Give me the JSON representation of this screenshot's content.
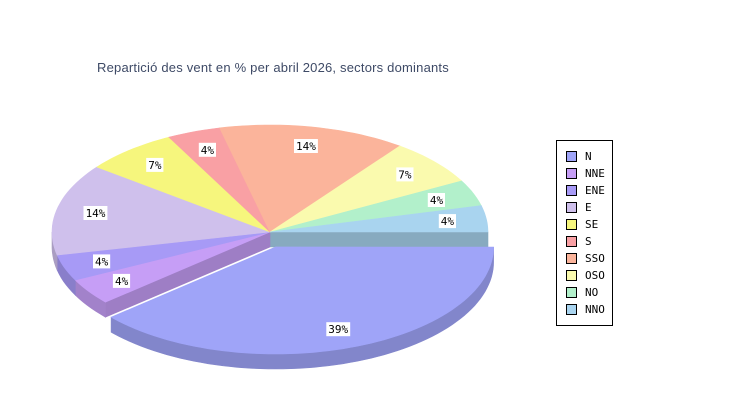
{
  "title": "Repartició des vent en % per abril 2026, sectors dominants",
  "title_color": "#3e4a66",
  "chart_data": {
    "type": "pie",
    "style": "3d-exploded",
    "title": "Repartició des vent en % per abril 2026, sectors dominants",
    "labels": [
      "N",
      "NNE",
      "ENE",
      "E",
      "SE",
      "S",
      "SSO",
      "OSO",
      "NO",
      "NNO"
    ],
    "values": [
      39,
      4,
      4,
      14,
      7,
      4,
      14,
      7,
      4,
      4
    ],
    "value_labels": [
      "39%",
      "4%",
      "4%",
      "14%",
      "7%",
      "4%",
      "14%",
      "7%",
      "4%",
      "4%"
    ],
    "colors": [
      "#9fa4f8",
      "#c69ef6",
      "#a79af6",
      "#cfc0ec",
      "#f6f67d",
      "#f9a0a4",
      "#fbb49b",
      "#fafaae",
      "#b2f0cb",
      "#a9d4ef"
    ],
    "exploded_index": 0,
    "exploded_label": "N",
    "legend_position": "right",
    "label_text_color": "#000000",
    "label_bg_color": "#ffffff"
  }
}
